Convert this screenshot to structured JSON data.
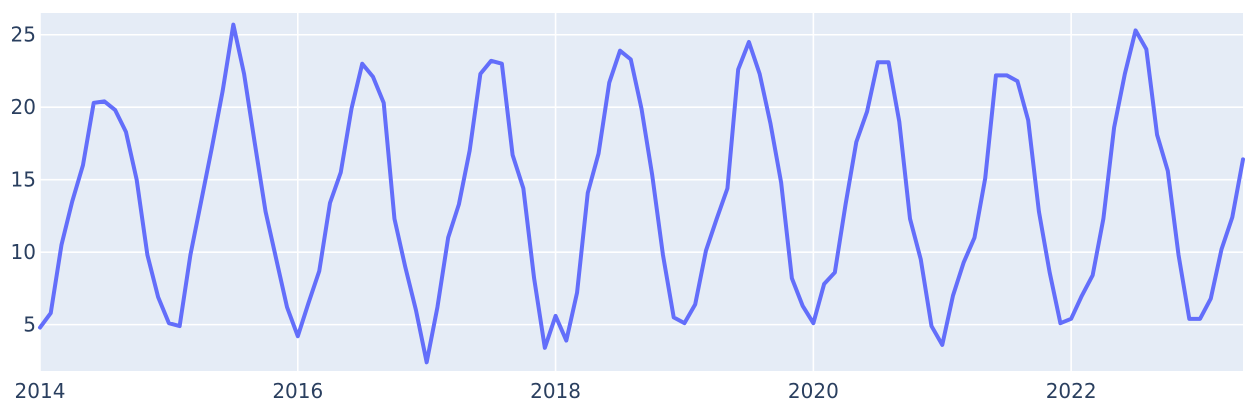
{
  "chart_data": {
    "type": "line",
    "title": "",
    "xlabel": "",
    "ylabel": "",
    "x_ticks": [
      "2014",
      "2016",
      "2018",
      "2020",
      "2022"
    ],
    "y_ticks": [
      5,
      10,
      15,
      20,
      25
    ],
    "xlim": [
      "2014-01",
      "2023-05"
    ],
    "ylim": [
      1.8,
      26.5
    ],
    "grid": true,
    "legend": "none",
    "colors": {
      "plot_bg": "#e5ecf6",
      "grid": "#ffffff",
      "line": "#636efa",
      "text": "#2a3f5f"
    },
    "series": [
      {
        "x": [
          "2014-01",
          "2014-02",
          "2014-03",
          "2014-04",
          "2014-05",
          "2014-06",
          "2014-07",
          "2014-08",
          "2014-09",
          "2014-10",
          "2014-11",
          "2014-12",
          "2015-01",
          "2015-02",
          "2015-03",
          "2015-04",
          "2015-05",
          "2015-06",
          "2015-07",
          "2015-08",
          "2015-09",
          "2015-10",
          "2015-11",
          "2015-12",
          "2016-01",
          "2016-02",
          "2016-03",
          "2016-04",
          "2016-05",
          "2016-06",
          "2016-07",
          "2016-08",
          "2016-09",
          "2016-10",
          "2016-11",
          "2016-12",
          "2017-01",
          "2017-02",
          "2017-03",
          "2017-04",
          "2017-05",
          "2017-06",
          "2017-07",
          "2017-08",
          "2017-09",
          "2017-10",
          "2017-11",
          "2017-12",
          "2018-01",
          "2018-02",
          "2018-03",
          "2018-04",
          "2018-05",
          "2018-06",
          "2018-07",
          "2018-08",
          "2018-09",
          "2018-10",
          "2018-11",
          "2018-12",
          "2019-01",
          "2019-02",
          "2019-03",
          "2019-04",
          "2019-05",
          "2019-06",
          "2019-07",
          "2019-08",
          "2019-09",
          "2019-10",
          "2019-11",
          "2019-12",
          "2020-01",
          "2020-02",
          "2020-03",
          "2020-04",
          "2020-05",
          "2020-06",
          "2020-07",
          "2020-08",
          "2020-09",
          "2020-10",
          "2020-11",
          "2020-12",
          "2021-01",
          "2021-02",
          "2021-03",
          "2021-04",
          "2021-05",
          "2021-06",
          "2021-07",
          "2021-08",
          "2021-09",
          "2021-10",
          "2021-11",
          "2021-12",
          "2022-01",
          "2022-02",
          "2022-03",
          "2022-04",
          "2022-05",
          "2022-06",
          "2022-07",
          "2022-08",
          "2022-09",
          "2022-10",
          "2022-11",
          "2022-12",
          "2023-01",
          "2023-02",
          "2023-03",
          "2023-04",
          "2023-05"
        ],
        "values": [
          4.8,
          5.8,
          10.5,
          13.5,
          16.0,
          20.3,
          20.4,
          19.8,
          18.3,
          15.0,
          9.8,
          6.9,
          5.1,
          4.9,
          9.8,
          13.5,
          17.2,
          21.1,
          25.7,
          22.3,
          17.5,
          12.8,
          9.5,
          6.2,
          4.2,
          6.5,
          8.7,
          13.4,
          15.5,
          19.9,
          23.0,
          22.1,
          20.3,
          12.3,
          9.0,
          6.0,
          2.4,
          6.2,
          11.0,
          13.3,
          17.0,
          22.3,
          23.2,
          23.0,
          16.7,
          14.4,
          8.2,
          3.4,
          5.6,
          3.9,
          7.2,
          14.1,
          16.8,
          21.7,
          23.9,
          23.3,
          19.9,
          15.3,
          9.8,
          5.5,
          5.1,
          6.4,
          10.1,
          12.3,
          14.4,
          22.6,
          24.5,
          22.3,
          18.9,
          14.8,
          8.2,
          6.3,
          5.1,
          7.8,
          8.6,
          13.3,
          17.6,
          19.7,
          23.1,
          23.1,
          19.0,
          12.3,
          9.5,
          4.9,
          3.6,
          7.0,
          9.3,
          11.0,
          15.1,
          22.2,
          22.2,
          21.8,
          19.1,
          12.8,
          8.6,
          5.1,
          5.4,
          7.0,
          8.4,
          12.3,
          18.6,
          22.3,
          25.3,
          24.0,
          18.1,
          15.6,
          9.8,
          5.4,
          5.4,
          6.8,
          10.2,
          12.4,
          16.4
        ]
      }
    ]
  }
}
